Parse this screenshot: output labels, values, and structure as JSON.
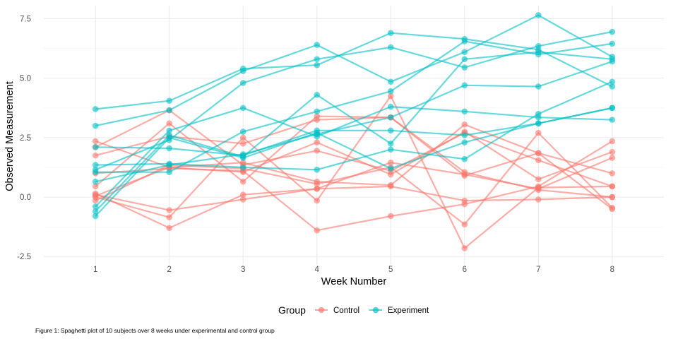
{
  "chart_data": {
    "type": "line",
    "xlabel": "Week Number",
    "ylabel": "Observed Measurement",
    "x": [
      1,
      2,
      3,
      4,
      5,
      6,
      7,
      8
    ],
    "xlim": [
      0.3,
      8.7
    ],
    "ylim": [
      -2.85,
      8.05
    ],
    "y_ticks": [
      -2.5,
      0.0,
      2.5,
      5.0,
      7.5
    ],
    "y_tick_labels": [
      "-2.5",
      "0.0",
      "2.5",
      "5.0",
      "7.5"
    ],
    "x_ticks": [
      1,
      2,
      3,
      4,
      5,
      6,
      7,
      8
    ],
    "x_tick_labels": [
      "1",
      "2",
      "3",
      "4",
      "5",
      "6",
      "7",
      "8"
    ],
    "grid": true,
    "legend": {
      "title": "Group",
      "position": "bottom",
      "entries": [
        "Control",
        "Experiment"
      ]
    },
    "colors": {
      "Control": "#F8766D",
      "Experiment": "#00BFC4"
    },
    "caption": "Figure 1: Spaghetti plot of 10 subjects over 8 weeks under experimental and control group",
    "series": [
      {
        "group": "Control",
        "values": [
          2.35,
          1.25,
          1.05,
          2.3,
          0.95,
          2.75,
          0.75,
          1.9
        ]
      },
      {
        "group": "Control",
        "values": [
          0.1,
          -0.55,
          -0.1,
          0.35,
          0.45,
          -0.15,
          -0.1,
          0.0
        ]
      },
      {
        "group": "Control",
        "values": [
          0.45,
          3.1,
          0.65,
          3.4,
          3.35,
          0.9,
          1.85,
          1.0
        ]
      },
      {
        "group": "Control",
        "values": [
          2.1,
          3.65,
          1.35,
          1.95,
          1.1,
          2.7,
          1.55,
          0.45
        ]
      },
      {
        "group": "Control",
        "values": [
          0.15,
          -1.3,
          0.1,
          0.35,
          1.45,
          0.95,
          0.35,
          1.65
        ]
      },
      {
        "group": "Control",
        "values": [
          1.75,
          2.55,
          2.25,
          3.25,
          3.35,
          1.05,
          0.3,
          0.0
        ]
      },
      {
        "group": "Control",
        "values": [
          0.05,
          1.25,
          1.45,
          0.65,
          0.5,
          3.05,
          1.85,
          -0.5
        ]
      },
      {
        "group": "Control",
        "values": [
          -0.15,
          1.35,
          1.2,
          0.55,
          1.25,
          -1.15,
          2.7,
          -0.45
        ]
      },
      {
        "group": "Control",
        "values": [
          1.0,
          1.2,
          1.1,
          -1.4,
          -0.8,
          -0.3,
          0.45,
          2.35
        ]
      },
      {
        "group": "Control",
        "values": [
          0.0,
          -0.85,
          2.5,
          -0.15,
          4.25,
          -2.15,
          0.4,
          0.45
        ]
      },
      {
        "group": "Experiment",
        "values": [
          3.7,
          4.05,
          5.4,
          5.55,
          6.9,
          6.65,
          6.2,
          4.65
        ]
      },
      {
        "group": "Experiment",
        "values": [
          3.0,
          3.65,
          5.3,
          6.4,
          4.85,
          6.1,
          7.65,
          5.9
        ]
      },
      {
        "group": "Experiment",
        "values": [
          1.15,
          2.4,
          4.8,
          5.8,
          6.3,
          5.45,
          6.35,
          6.95
        ]
      },
      {
        "group": "Experiment",
        "values": [
          2.1,
          2.05,
          1.75,
          2.8,
          2.8,
          2.6,
          3.1,
          3.75
        ]
      },
      {
        "group": "Experiment",
        "values": [
          0.65,
          1.35,
          1.8,
          2.65,
          3.35,
          4.7,
          4.65,
          5.7
        ]
      },
      {
        "group": "Experiment",
        "values": [
          -0.4,
          2.8,
          3.75,
          2.55,
          3.8,
          3.6,
          3.35,
          3.25
        ]
      },
      {
        "group": "Experiment",
        "values": [
          1.05,
          1.05,
          2.75,
          3.6,
          4.45,
          6.55,
          6.0,
          6.45
        ]
      },
      {
        "group": "Experiment",
        "values": [
          -0.6,
          2.6,
          1.7,
          4.3,
          2.25,
          5.8,
          6.1,
          5.8
        ]
      },
      {
        "group": "Experiment",
        "values": [
          1.35,
          1.4,
          1.25,
          1.15,
          2.0,
          1.6,
          3.5,
          4.85
        ]
      },
      {
        "group": "Experiment",
        "values": [
          -0.8,
          2.5,
          1.65,
          2.7,
          1.2,
          2.3,
          3.1,
          3.75
        ]
      }
    ]
  }
}
